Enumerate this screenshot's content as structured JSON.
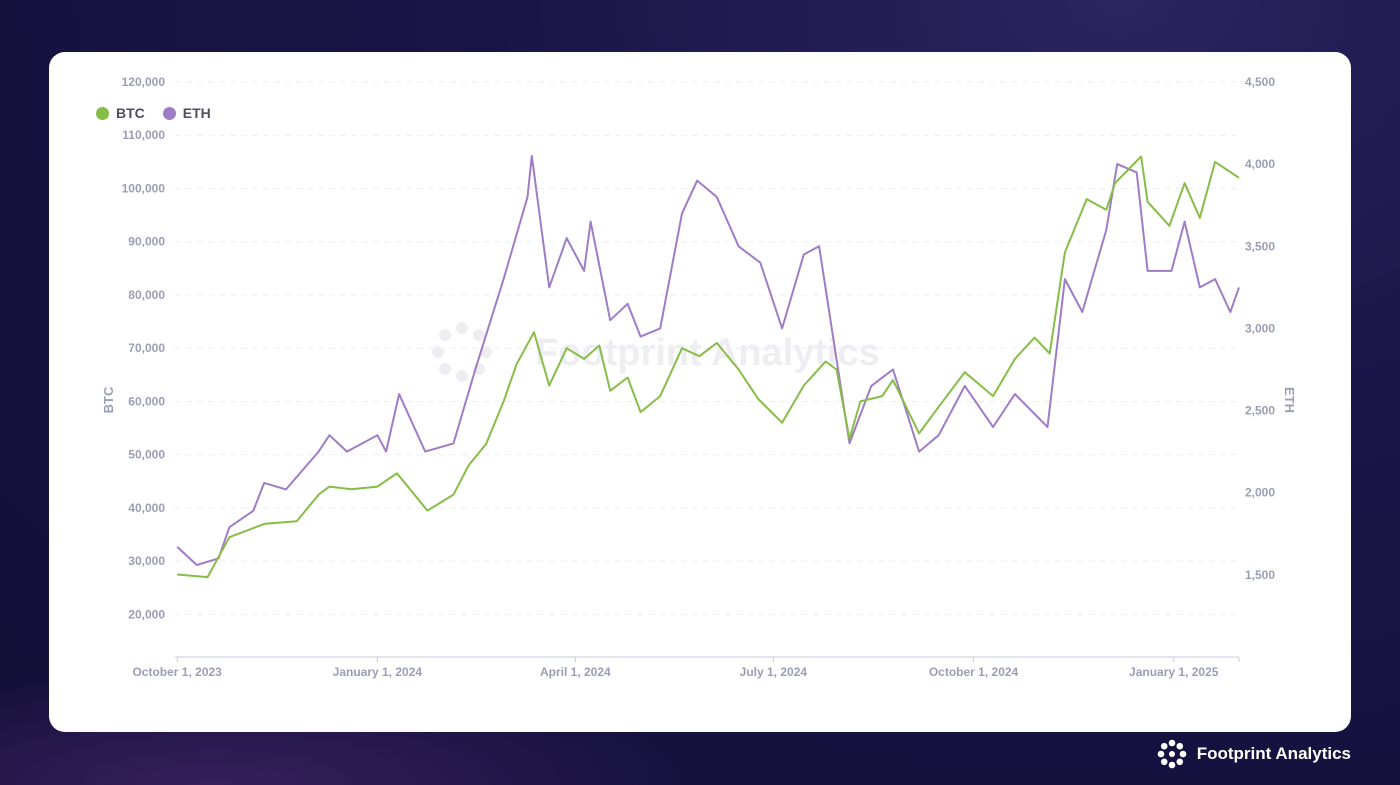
{
  "colors": {
    "btc": "#86bd46",
    "eth": "#9f7cc6"
  },
  "brand": {
    "name": "Footprint Analytics",
    "icon": "footprint-logo-icon"
  },
  "chart_data": {
    "type": "line",
    "watermark": "Footprint Analytics",
    "x_ticks": [
      "October 1, 2023",
      "January 1, 2024",
      "April 1, 2024",
      "July 1, 2024",
      "October 1, 2024",
      "January 1, 2025"
    ],
    "x_range": [
      "2023-09-30",
      "2025-01-31"
    ],
    "y_left": {
      "label": "BTC",
      "range": [
        12000,
        120000
      ],
      "ticks": [
        "20,000",
        "30,000",
        "40,000",
        "50,000",
        "60,000",
        "70,000",
        "80,000",
        "90,000",
        "100,000",
        "110,000",
        "120,000"
      ],
      "tick_values": [
        20000,
        30000,
        40000,
        50000,
        60000,
        70000,
        80000,
        90000,
        100000,
        110000,
        120000
      ]
    },
    "y_right": {
      "label": "ETH",
      "range": [
        1000,
        4500
      ],
      "ticks": [
        "1,500",
        "2,000",
        "2,500",
        "3,000",
        "3,500",
        "4,000",
        "4,500"
      ],
      "tick_values": [
        1500,
        2000,
        2500,
        3000,
        3500,
        4000,
        4500
      ]
    },
    "series": [
      {
        "name": "BTC",
        "axis": "left",
        "points": [
          [
            "2023-10-01",
            27500
          ],
          [
            "2023-10-15",
            27000
          ],
          [
            "2023-10-25",
            34500
          ],
          [
            "2023-11-10",
            37000
          ],
          [
            "2023-11-25",
            37500
          ],
          [
            "2023-12-05",
            42500
          ],
          [
            "2023-12-10",
            44000
          ],
          [
            "2023-12-20",
            43500
          ],
          [
            "2024-01-01",
            44000
          ],
          [
            "2024-01-10",
            46500
          ],
          [
            "2024-01-20",
            41500
          ],
          [
            "2024-01-24",
            39500
          ],
          [
            "2024-02-05",
            42500
          ],
          [
            "2024-02-12",
            48000
          ],
          [
            "2024-02-20",
            52000
          ],
          [
            "2024-02-28",
            60000
          ],
          [
            "2024-03-05",
            67000
          ],
          [
            "2024-03-13",
            73000
          ],
          [
            "2024-03-20",
            63000
          ],
          [
            "2024-03-28",
            70000
          ],
          [
            "2024-04-05",
            68000
          ],
          [
            "2024-04-12",
            70500
          ],
          [
            "2024-04-17",
            62000
          ],
          [
            "2024-04-25",
            64500
          ],
          [
            "2024-05-01",
            58000
          ],
          [
            "2024-05-10",
            61000
          ],
          [
            "2024-05-20",
            70000
          ],
          [
            "2024-05-28",
            68500
          ],
          [
            "2024-06-05",
            71000
          ],
          [
            "2024-06-15",
            66000
          ],
          [
            "2024-06-24",
            60500
          ],
          [
            "2024-07-05",
            56000
          ],
          [
            "2024-07-15",
            63000
          ],
          [
            "2024-07-25",
            67500
          ],
          [
            "2024-07-30",
            66000
          ],
          [
            "2024-08-05",
            53000
          ],
          [
            "2024-08-10",
            60000
          ],
          [
            "2024-08-20",
            61000
          ],
          [
            "2024-08-25",
            64000
          ],
          [
            "2024-09-06",
            54000
          ],
          [
            "2024-09-15",
            59000
          ],
          [
            "2024-09-27",
            65500
          ],
          [
            "2024-10-10",
            61000
          ],
          [
            "2024-10-20",
            68000
          ],
          [
            "2024-10-29",
            72000
          ],
          [
            "2024-11-05",
            69000
          ],
          [
            "2024-11-12",
            88000
          ],
          [
            "2024-11-22",
            98000
          ],
          [
            "2024-12-01",
            96000
          ],
          [
            "2024-12-05",
            101000
          ],
          [
            "2024-12-17",
            106000
          ],
          [
            "2024-12-20",
            97500
          ],
          [
            "2024-12-30",
            93000
          ],
          [
            "2025-01-06",
            101000
          ],
          [
            "2025-01-13",
            94500
          ],
          [
            "2025-01-20",
            105000
          ],
          [
            "2025-01-31",
            102000
          ]
        ]
      },
      {
        "name": "ETH",
        "axis": "right",
        "points": [
          [
            "2023-10-01",
            1670
          ],
          [
            "2023-10-10",
            1560
          ],
          [
            "2023-10-20",
            1600
          ],
          [
            "2023-10-25",
            1790
          ],
          [
            "2023-11-05",
            1890
          ],
          [
            "2023-11-10",
            2060
          ],
          [
            "2023-11-20",
            2020
          ],
          [
            "2023-12-05",
            2250
          ],
          [
            "2023-12-10",
            2350
          ],
          [
            "2023-12-18",
            2250
          ],
          [
            "2024-01-01",
            2350
          ],
          [
            "2024-01-05",
            2250
          ],
          [
            "2024-01-11",
            2600
          ],
          [
            "2024-01-23",
            2250
          ],
          [
            "2024-02-05",
            2300
          ],
          [
            "2024-02-15",
            2750
          ],
          [
            "2024-02-28",
            3300
          ],
          [
            "2024-03-10",
            3800
          ],
          [
            "2024-03-12",
            4050
          ],
          [
            "2024-03-20",
            3250
          ],
          [
            "2024-03-28",
            3550
          ],
          [
            "2024-04-05",
            3350
          ],
          [
            "2024-04-08",
            3650
          ],
          [
            "2024-04-17",
            3050
          ],
          [
            "2024-04-25",
            3150
          ],
          [
            "2024-05-01",
            2950
          ],
          [
            "2024-05-10",
            3000
          ],
          [
            "2024-05-20",
            3700
          ],
          [
            "2024-05-27",
            3900
          ],
          [
            "2024-06-05",
            3800
          ],
          [
            "2024-06-15",
            3500
          ],
          [
            "2024-06-25",
            3400
          ],
          [
            "2024-07-05",
            3000
          ],
          [
            "2024-07-15",
            3450
          ],
          [
            "2024-07-22",
            3500
          ],
          [
            "2024-08-05",
            2300
          ],
          [
            "2024-08-15",
            2650
          ],
          [
            "2024-08-25",
            2750
          ],
          [
            "2024-09-06",
            2250
          ],
          [
            "2024-09-15",
            2350
          ],
          [
            "2024-09-27",
            2650
          ],
          [
            "2024-10-10",
            2400
          ],
          [
            "2024-10-20",
            2600
          ],
          [
            "2024-11-04",
            2400
          ],
          [
            "2024-11-12",
            3300
          ],
          [
            "2024-11-20",
            3100
          ],
          [
            "2024-12-01",
            3600
          ],
          [
            "2024-12-06",
            4000
          ],
          [
            "2024-12-15",
            3950
          ],
          [
            "2024-12-20",
            3350
          ],
          [
            "2024-12-31",
            3350
          ],
          [
            "2025-01-06",
            3650
          ],
          [
            "2025-01-13",
            3250
          ],
          [
            "2025-01-20",
            3300
          ],
          [
            "2025-01-27",
            3100
          ],
          [
            "2025-01-31",
            3250
          ]
        ]
      }
    ]
  }
}
